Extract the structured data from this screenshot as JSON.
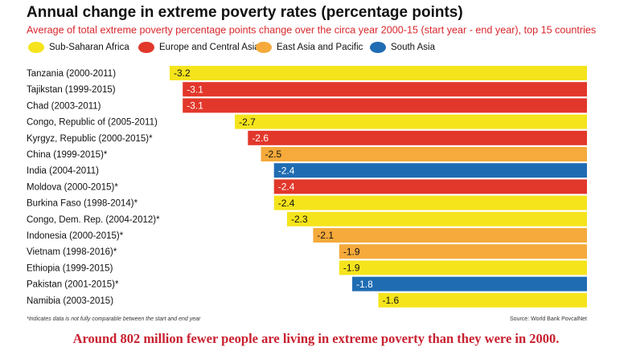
{
  "chart_data": {
    "type": "hbar",
    "title": "Annual change in extreme poverty rates (percentage points)",
    "subtitle": "Average of total extreme poverty percentage points change over the circa year 2000-15 (start year - end year), top 15 countries",
    "legend": [
      {
        "name": "Sub-Saharan Africa",
        "color": "#f5e41c"
      },
      {
        "name": "Europe and Central Asia",
        "color": "#e2372b"
      },
      {
        "name": "East Asia and Pacific",
        "color": "#f5aa3b"
      },
      {
        "name": "South Asia",
        "color": "#1f6cb2"
      }
    ],
    "categories": [
      "Tanzania (2000-2011)",
      "Tajikstan (1999-2015)",
      "Chad (2003-2011)",
      "Congo, Republic of (2005-2011)",
      "Kyrgyz, Republic (2000-2015)*",
      "China (1999-2015)*",
      "India (2004-2011)",
      "Moldova (2000-2015)*",
      "Burkina Faso (1998-2014)*",
      "Congo, Dem. Rep. (2004-2012)*",
      "Indonesia (2000-2015)*",
      "Vietnam (1998-2016)*",
      "Ethiopia (1999-2015)",
      "Pakistan (2001-2015)*",
      "Namibia (2003-2015)"
    ],
    "values": [
      -3.2,
      -3.1,
      -3.1,
      -2.7,
      -2.6,
      -2.5,
      -2.4,
      -2.4,
      -2.4,
      -2.3,
      -2.1,
      -1.9,
      -1.9,
      -1.8,
      -1.6
    ],
    "colors": [
      "#f5e41c",
      "#e2372b",
      "#e2372b",
      "#f5e41c",
      "#e2372b",
      "#f5aa3b",
      "#1f6cb2",
      "#e2372b",
      "#f5e41c",
      "#f5e41c",
      "#f5aa3b",
      "#f5aa3b",
      "#f5e41c",
      "#1f6cb2",
      "#f5e41c"
    ],
    "xlim": [
      -3.2,
      0
    ],
    "footnote": "*Indicates data is not fully comparable between the start and end year",
    "source": "Source: World Bank PovcalNet",
    "caption": "Around 802 million fewer people are living in extreme poverty than they were in 2000."
  }
}
